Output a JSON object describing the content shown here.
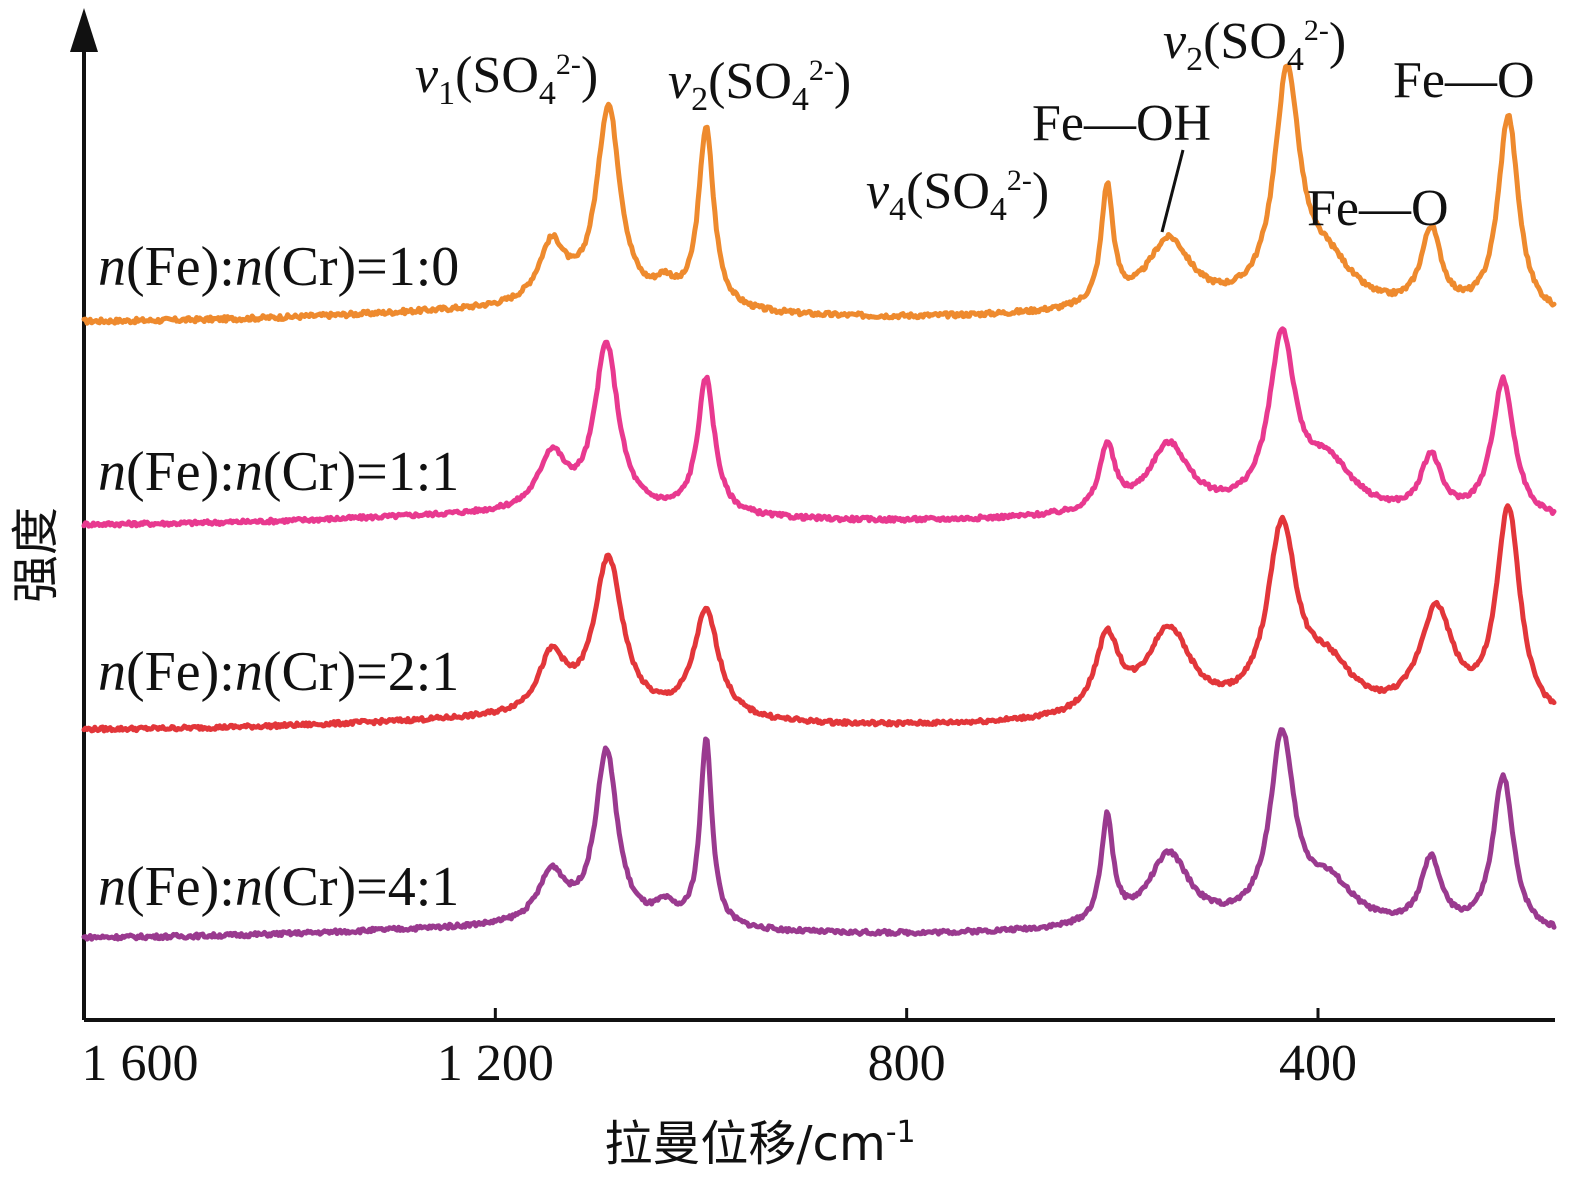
{
  "chart_data": {
    "type": "line",
    "xlabel": "拉曼位移/cm⁻¹",
    "ylabel": "强度",
    "xlim": [
      1600,
      170
    ],
    "x_reversed": true,
    "x_ticks": [
      {
        "value": 1600,
        "label": "1 600"
      },
      {
        "value": 1200,
        "label": "1 200"
      },
      {
        "value": 800,
        "label": "800"
      },
      {
        "value": 400,
        "label": "400"
      }
    ],
    "y_ticks_shown": false,
    "grid": false,
    "legend": "inline-left",
    "peak_annotations": [
      {
        "x": 1090,
        "text": "v1(SO42-)",
        "main": "v",
        "sub": "1",
        "rest": "(SO",
        "sub2": "4",
        "sup": "2-",
        "close": ")"
      },
      {
        "x": 995,
        "text": "v2(SO42-)",
        "main": "v",
        "sub": "2",
        "rest": "(SO",
        "sub2": "4",
        "sup": "2-",
        "close": ")"
      },
      {
        "x": 605,
        "text": "v4(SO42-)",
        "main": "v",
        "sub": "4",
        "rest": "(SO",
        "sub2": "4",
        "sup": "2-",
        "close": ")"
      },
      {
        "x": 545,
        "text": "Fe—OH"
      },
      {
        "x": 430,
        "text": "v2(SO42-)",
        "main": "v",
        "sub": "2",
        "rest": "(SO",
        "sub2": "4",
        "sup": "2-",
        "close": ")"
      },
      {
        "x": 290,
        "text": "Fe—O"
      },
      {
        "x": 215,
        "text": "Fe—O"
      }
    ],
    "series": [
      {
        "name": "n(Fe):n(Cr)=1:0",
        "label_parts": [
          "n",
          "(Fe):",
          "n",
          "(Cr)=1:0"
        ],
        "color": "#EE8A2E",
        "baseline": 0.0,
        "peaks": [
          {
            "x": 1145,
            "h": 0.32,
            "w": 16
          },
          {
            "x": 1090,
            "h": 1.05,
            "w": 14
          },
          {
            "x": 1035,
            "h": 0.1,
            "w": 12
          },
          {
            "x": 995,
            "h": 0.95,
            "w": 9
          },
          {
            "x": 605,
            "h": 0.62,
            "w": 7
          },
          {
            "x": 545,
            "h": 0.36,
            "w": 26
          },
          {
            "x": 430,
            "h": 1.2,
            "w": 15
          },
          {
            "x": 390,
            "h": 0.22,
            "w": 30
          },
          {
            "x": 290,
            "h": 0.42,
            "w": 12
          },
          {
            "x": 215,
            "h": 1.05,
            "w": 12
          }
        ]
      },
      {
        "name": "n(Fe):n(Cr)=1:1",
        "label_parts": [
          "n",
          "(Fe):",
          "n",
          "(Cr)=1:1"
        ],
        "color": "#E8398F",
        "baseline": 0.0,
        "peaks": [
          {
            "x": 1145,
            "h": 0.33,
            "w": 16
          },
          {
            "x": 1092,
            "h": 0.98,
            "w": 14
          },
          {
            "x": 995,
            "h": 0.8,
            "w": 10
          },
          {
            "x": 605,
            "h": 0.38,
            "w": 9
          },
          {
            "x": 545,
            "h": 0.4,
            "w": 24
          },
          {
            "x": 435,
            "h": 1.0,
            "w": 15
          },
          {
            "x": 390,
            "h": 0.28,
            "w": 30
          },
          {
            "x": 290,
            "h": 0.34,
            "w": 12
          },
          {
            "x": 220,
            "h": 0.82,
            "w": 13
          }
        ]
      },
      {
        "name": "n(Fe):n(Cr)=2:1",
        "label_parts": [
          "n",
          "(Fe):",
          "n",
          "(Cr)=2:1"
        ],
        "color": "#E2363A",
        "baseline": 0.0,
        "peaks": [
          {
            "x": 1145,
            "h": 0.35,
            "w": 16
          },
          {
            "x": 1090,
            "h": 0.95,
            "w": 17
          },
          {
            "x": 995,
            "h": 0.65,
            "w": 15
          },
          {
            "x": 605,
            "h": 0.46,
            "w": 14
          },
          {
            "x": 545,
            "h": 0.52,
            "w": 26
          },
          {
            "x": 435,
            "h": 1.1,
            "w": 17
          },
          {
            "x": 390,
            "h": 0.28,
            "w": 30
          },
          {
            "x": 285,
            "h": 0.65,
            "w": 20
          },
          {
            "x": 215,
            "h": 1.28,
            "w": 14
          }
        ]
      },
      {
        "name": "n(Fe):n(Cr)=4:1",
        "label_parts": [
          "n",
          "(Fe):",
          "n",
          "(Cr)=4:1"
        ],
        "color": "#9A3A8F",
        "baseline": 0.0,
        "peaks": [
          {
            "x": 1145,
            "h": 0.3,
            "w": 16
          },
          {
            "x": 1092,
            "h": 1.02,
            "w": 13
          },
          {
            "x": 1035,
            "h": 0.1,
            "w": 12
          },
          {
            "x": 995,
            "h": 1.1,
            "w": 7
          },
          {
            "x": 605,
            "h": 0.62,
            "w": 7
          },
          {
            "x": 545,
            "h": 0.42,
            "w": 24
          },
          {
            "x": 435,
            "h": 1.08,
            "w": 14
          },
          {
            "x": 390,
            "h": 0.25,
            "w": 30
          },
          {
            "x": 290,
            "h": 0.4,
            "w": 12
          },
          {
            "x": 220,
            "h": 0.92,
            "w": 12
          }
        ]
      }
    ]
  }
}
